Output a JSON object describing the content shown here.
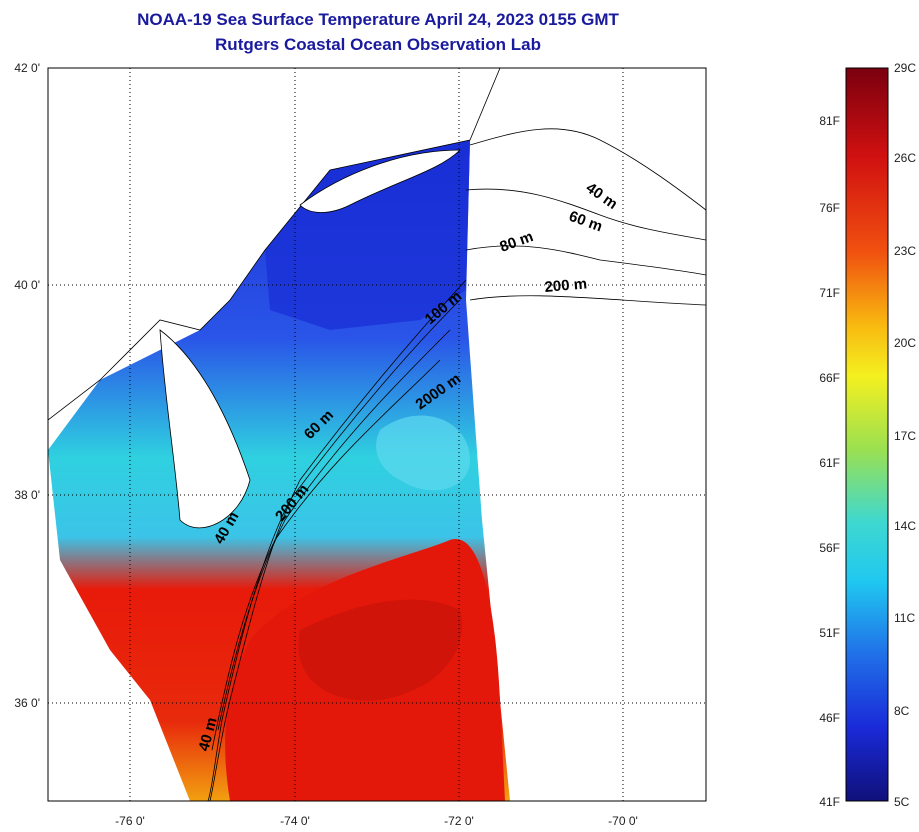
{
  "title": {
    "line1": "NOAA-19 Sea Surface Temperature April 24, 2023 0155 GMT",
    "line2": "Rutgers Coastal Ocean Observation Lab"
  },
  "axes": {
    "lat_labels": [
      "42 0'",
      "40 0'",
      "38 0'",
      "36 0'"
    ],
    "lon_labels": [
      "-76 0'",
      "-74 0'",
      "-72 0'",
      "-70 0'"
    ]
  },
  "contour_labels": [
    "40 m",
    "60 m",
    "80 m",
    "200 m",
    "100 m",
    "2000 m",
    "60 m",
    "200 m",
    "40 m",
    "40 m"
  ],
  "colorbar": {
    "fahrenheit": [
      "81F",
      "76F",
      "71F",
      "66F",
      "61F",
      "56F",
      "51F",
      "46F",
      "41F"
    ],
    "celsius": [
      "29C",
      "26C",
      "23C",
      "20C",
      "17C",
      "14C",
      "11C",
      "8C",
      "5C"
    ]
  },
  "colors": {
    "title": "#1a1a9e",
    "cold": "#1a2fd6",
    "mid": "#2fd0e0",
    "warm": "#e81a0a",
    "hot": "#8a0010"
  }
}
